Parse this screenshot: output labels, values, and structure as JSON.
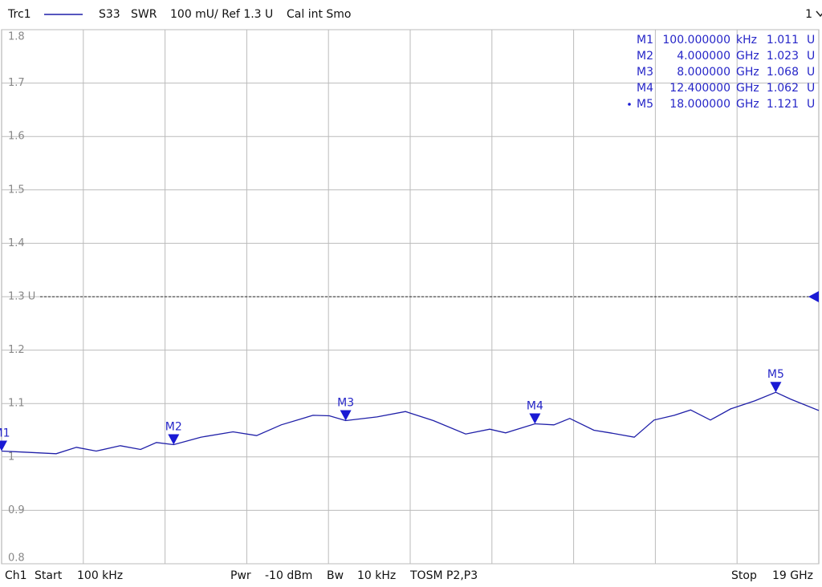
{
  "chart_data": {
    "type": "line",
    "header_items": [
      "S33",
      "SWR",
      "100 mU/ Ref 1.3 U",
      "Cal int Smo"
    ],
    "channel": "1",
    "footer_items": [
      "Ch1",
      "Start",
      "100 kHz",
      "Pwr",
      "-10 dBm",
      "Bw",
      "10 kHz",
      "TOSM P2,P3",
      "Stop",
      "19 GHz"
    ],
    "x": [
      0.0001,
      0.52,
      1.27,
      1.74,
      2.2,
      2.76,
      3.23,
      3.6,
      4.0,
      4.63,
      5.38,
      5.93,
      6.5,
      7.24,
      7.62,
      8.0,
      8.73,
      9.39,
      10.04,
      10.79,
      11.35,
      11.72,
      12.4,
      12.84,
      13.21,
      13.77,
      14.15,
      14.71,
      15.17,
      15.64,
      16.02,
      16.48,
      16.95,
      17.51,
      18.0,
      18.35,
      19.0
    ],
    "series": [
      {
        "name": "Trc1",
        "color": "#1f1fa8",
        "values": [
          1.011,
          1.009,
          1.006,
          1.018,
          1.011,
          1.021,
          1.014,
          1.027,
          1.023,
          1.037,
          1.047,
          1.04,
          1.06,
          1.078,
          1.077,
          1.068,
          1.075,
          1.085,
          1.068,
          1.043,
          1.052,
          1.045,
          1.062,
          1.06,
          1.072,
          1.05,
          1.045,
          1.037,
          1.069,
          1.078,
          1.088,
          1.069,
          1.09,
          1.105,
          1.121,
          1.108,
          1.087
        ]
      }
    ],
    "xlim": [
      0.0001,
      19
    ],
    "xticks": [
      1.9,
      3.8,
      5.7,
      7.6,
      9.5,
      11.4,
      13.3,
      15.2,
      17.1
    ],
    "ylim": [
      0.8,
      1.8
    ],
    "yticks": [
      0.8,
      0.9,
      1,
      1.1,
      1.2,
      {
        "value": 1.3,
        "label": "1.3 U"
      },
      1.4,
      1.5,
      1.6,
      1.7,
      1.8
    ],
    "grid": true,
    "reference": 1.3,
    "marker_color": "#1a1ad4",
    "markers": [
      {
        "name": "M1",
        "x": 0.0001,
        "x_label": "100.000000",
        "x_unit": "kHz",
        "value": 1.011,
        "unit": "U"
      },
      {
        "name": "M2",
        "x": 4.0,
        "x_label": "4.000000",
        "x_unit": "GHz",
        "value": 1.023,
        "unit": "U"
      },
      {
        "name": "M3",
        "x": 8.0,
        "x_label": "8.000000",
        "x_unit": "GHz",
        "value": 1.068,
        "unit": "U"
      },
      {
        "name": "M4",
        "x": 12.4,
        "x_label": "12.400000",
        "x_unit": "GHz",
        "value": 1.062,
        "unit": "U"
      },
      {
        "name": "M5",
        "x": 18.0,
        "x_label": "18.000000",
        "x_unit": "GHz",
        "value": 1.121,
        "unit": "U",
        "active": true
      }
    ]
  }
}
